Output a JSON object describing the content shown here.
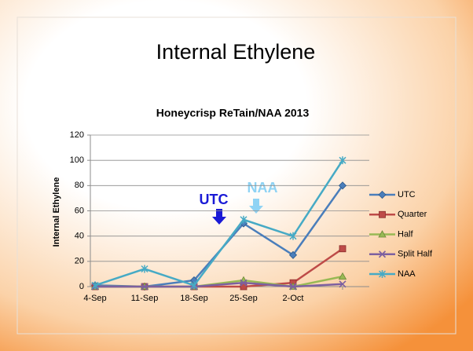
{
  "slide_title": "Internal Ethylene",
  "chart_data": {
    "type": "line",
    "title": "Honeycrisp ReTain/NAA 2013",
    "y_label": "Internal Ethylene",
    "categories": [
      "4-Sep",
      "11-Sep",
      "18-Sep",
      "25-Sep",
      "2-Oct",
      null
    ],
    "series": [
      {
        "name": "UTC",
        "color": "#4a7ebb",
        "marker": "diamond",
        "values": [
          1,
          0,
          5,
          50,
          25,
          80
        ]
      },
      {
        "name": "Quarter",
        "color": "#be4b48",
        "marker": "square",
        "values": [
          0,
          0,
          0,
          0,
          3,
          30
        ]
      },
      {
        "name": "Half",
        "color": "#98b954",
        "marker": "triangle",
        "values": [
          0,
          0,
          0,
          5,
          0,
          8
        ]
      },
      {
        "name": "Split Half",
        "color": "#7d60a0",
        "marker": "x",
        "values": [
          0,
          0,
          0,
          3,
          0,
          2
        ]
      },
      {
        "name": "NAA",
        "color": "#46aac5",
        "marker": "star",
        "values": [
          1,
          14,
          1,
          53,
          40,
          100
        ]
      }
    ],
    "ylim": [
      0,
      120
    ],
    "yticks": [
      0,
      20,
      40,
      60,
      80,
      100,
      120
    ],
    "grid": true,
    "legend": "right",
    "annotations": [
      {
        "text": "UTC",
        "color": "#1a1ad6"
      },
      {
        "text": "NAA",
        "color": "#8fd3f4"
      }
    ]
  }
}
